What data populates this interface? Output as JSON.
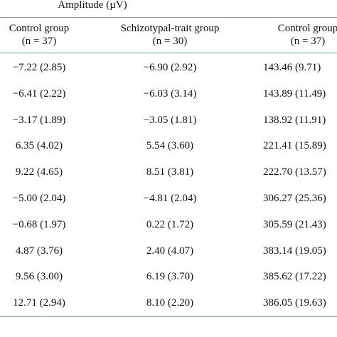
{
  "table": {
    "group_header": "Amplitude (µV)",
    "columns": [
      {
        "name": "Control group",
        "n": "(n = 37)"
      },
      {
        "name": "Schizotypal-trait group",
        "n": "(n = 30)"
      },
      {
        "name": "Control group",
        "n": "(n = 37)"
      }
    ],
    "rows": [
      [
        "−7.22 (2.85)",
        "−6.90 (2.92)",
        "143.46 (9.71)"
      ],
      [
        "−6.41 (2.22)",
        "−6.03 (3.14)",
        "143.89 (11.49)"
      ],
      [
        "−3.17 (1.89)",
        "−3.05 (1.81)",
        "138.92 (11.91)"
      ],
      [
        "6.35 (4.02)",
        "5.54 (3.60)",
        "221.41 (15.89)"
      ],
      [
        "9.22 (4.65)",
        "8.51 (3.81)",
        "222.70 (13.57)"
      ],
      [
        "−5.00 (2.04)",
        "−4.81 (2.04)",
        "306.27 (25.36)"
      ],
      [
        "−0.68 (1.97)",
        "0.22 (1.72)",
        "305.59 (21.43)"
      ],
      [
        "4.87 (3.76)",
        "2.40 (4.07)",
        "383.14 (19.05)"
      ],
      [
        "9.56 (3.00)",
        "6.19 (3.70)",
        "385.62 (17.22)"
      ],
      [
        "12.71 (2.94)",
        "8.10 (2.20)",
        "386.05 (19.63)"
      ]
    ]
  }
}
